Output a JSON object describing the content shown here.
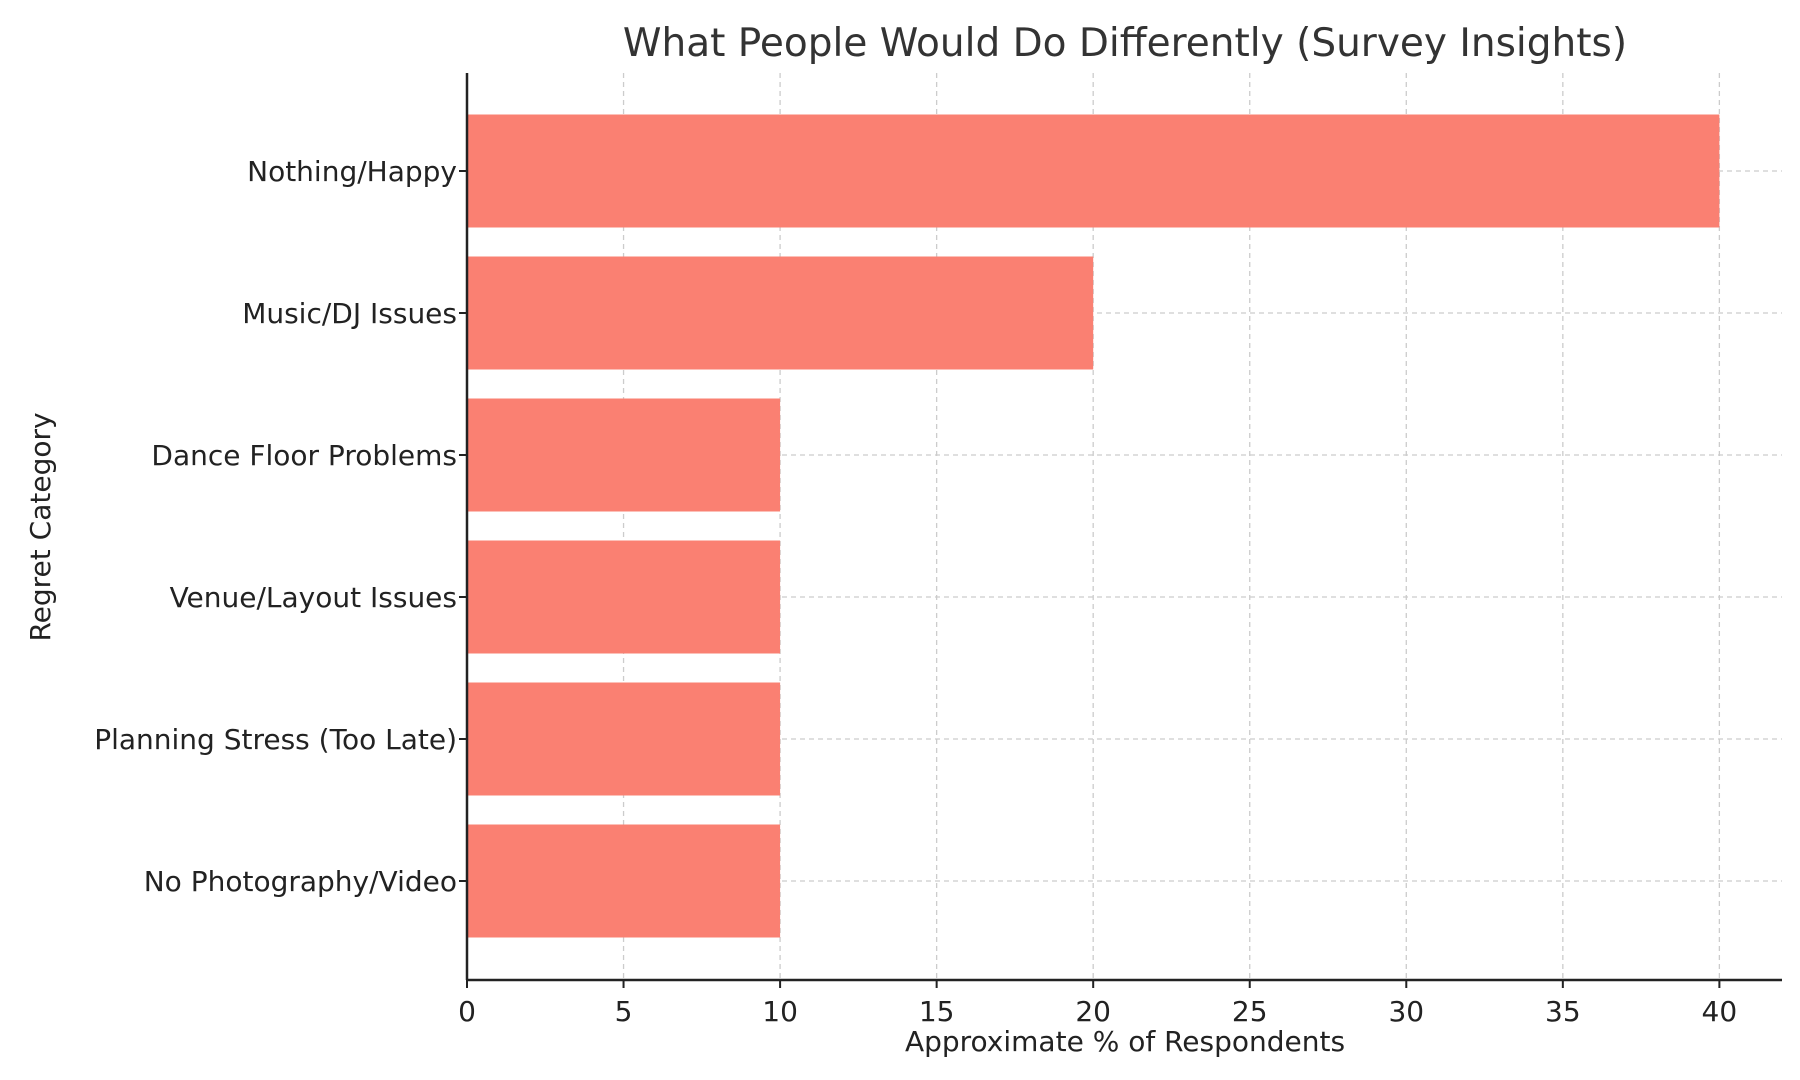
{
  "chart_data": {
    "type": "bar",
    "orientation": "horizontal",
    "title": "What People Would Do Differently (Survey Insights)",
    "xlabel": "Approximate % of Respondents",
    "ylabel": "Regret Category",
    "categories": [
      "Nothing/Happy",
      "Music/DJ Issues",
      "Dance Floor Problems",
      "Venue/Layout Issues",
      "Planning Stress (Too Late)",
      "No Photography/Video"
    ],
    "values": [
      40,
      20,
      10,
      10,
      10,
      10
    ],
    "xlim": [
      0,
      42
    ],
    "xticks": [
      0,
      5,
      10,
      15,
      20,
      25,
      30,
      35,
      40
    ],
    "grid": true,
    "bar_color": "#FA8072"
  }
}
